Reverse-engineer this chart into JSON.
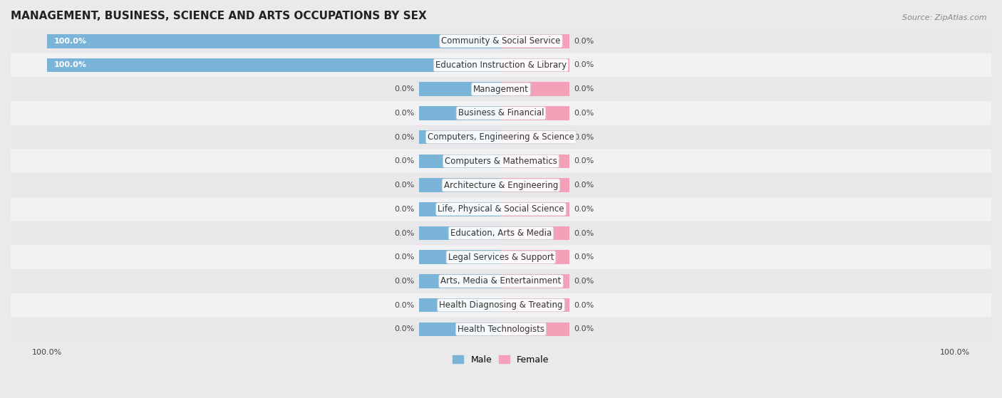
{
  "title": "MANAGEMENT, BUSINESS, SCIENCE AND ARTS OCCUPATIONS BY SEX",
  "source": "Source: ZipAtlas.com",
  "categories": [
    "Community & Social Service",
    "Education Instruction & Library",
    "Management",
    "Business & Financial",
    "Computers, Engineering & Science",
    "Computers & Mathematics",
    "Architecture & Engineering",
    "Life, Physical & Social Science",
    "Education, Arts & Media",
    "Legal Services & Support",
    "Arts, Media & Entertainment",
    "Health Diagnosing & Treating",
    "Health Technologists"
  ],
  "male_values": [
    100.0,
    100.0,
    0.0,
    0.0,
    0.0,
    0.0,
    0.0,
    0.0,
    0.0,
    0.0,
    0.0,
    0.0,
    0.0
  ],
  "female_values": [
    0.0,
    0.0,
    0.0,
    0.0,
    0.0,
    0.0,
    0.0,
    0.0,
    0.0,
    0.0,
    0.0,
    0.0,
    0.0
  ],
  "male_color": "#7ab5d9",
  "female_color": "#f4a0b8",
  "male_label": "Male",
  "female_label": "Female",
  "row_colors": [
    "#e8e8ea",
    "#f2f2f4"
  ],
  "xlim_abs": 100,
  "zero_bar_male": 18,
  "zero_bar_female": 15,
  "bar_height": 0.58,
  "title_fontsize": 11,
  "label_fontsize": 8.5,
  "value_fontsize": 8,
  "tick_fontsize": 8,
  "source_fontsize": 8
}
